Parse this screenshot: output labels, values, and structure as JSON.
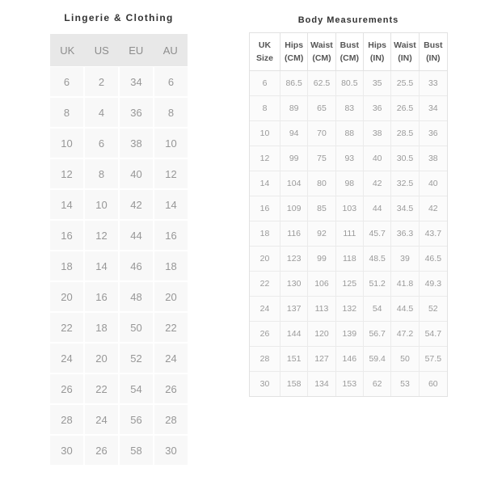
{
  "colors": {
    "page_background": "#ffffff",
    "clothing_header_bg": "#e8e8e8",
    "clothing_cell_bg": "#f8f8f8",
    "measure_border": "#e2e2e2",
    "measure_cell_bg": "#fbfbfb",
    "title_text": "#333333",
    "clothing_header_text": "#8d8d8d",
    "data_text": "#9a9a9a",
    "measure_header_text": "#565656"
  },
  "clothing_table": {
    "title": "Lingerie & Clothing",
    "headers": [
      "UK",
      "US",
      "EU",
      "AU"
    ],
    "rows": [
      [
        "6",
        "2",
        "34",
        "6"
      ],
      [
        "8",
        "4",
        "36",
        "8"
      ],
      [
        "10",
        "6",
        "38",
        "10"
      ],
      [
        "12",
        "8",
        "40",
        "12"
      ],
      [
        "14",
        "10",
        "42",
        "14"
      ],
      [
        "16",
        "12",
        "44",
        "16"
      ],
      [
        "18",
        "14",
        "46",
        "18"
      ],
      [
        "20",
        "16",
        "48",
        "20"
      ],
      [
        "22",
        "18",
        "50",
        "22"
      ],
      [
        "24",
        "20",
        "52",
        "24"
      ],
      [
        "26",
        "22",
        "54",
        "26"
      ],
      [
        "28",
        "24",
        "56",
        "28"
      ],
      [
        "30",
        "26",
        "58",
        "30"
      ]
    ]
  },
  "measurements_table": {
    "title": "Body Measurements",
    "headers": [
      [
        "UK",
        "Size"
      ],
      [
        "Hips",
        "(CM)"
      ],
      [
        "Waist",
        "(CM)"
      ],
      [
        "Bust",
        "(CM)"
      ],
      [
        "Hips",
        "(IN)"
      ],
      [
        "Waist",
        "(IN)"
      ],
      [
        "Bust",
        "(IN)"
      ]
    ],
    "rows": [
      [
        "6",
        "86.5",
        "62.5",
        "80.5",
        "35",
        "25.5",
        "33"
      ],
      [
        "8",
        "89",
        "65",
        "83",
        "36",
        "26.5",
        "34"
      ],
      [
        "10",
        "94",
        "70",
        "88",
        "38",
        "28.5",
        "36"
      ],
      [
        "12",
        "99",
        "75",
        "93",
        "40",
        "30.5",
        "38"
      ],
      [
        "14",
        "104",
        "80",
        "98",
        "42",
        "32.5",
        "40"
      ],
      [
        "16",
        "109",
        "85",
        "103",
        "44",
        "34.5",
        "42"
      ],
      [
        "18",
        "116",
        "92",
        "111",
        "45.7",
        "36.3",
        "43.7"
      ],
      [
        "20",
        "123",
        "99",
        "118",
        "48.5",
        "39",
        "46.5"
      ],
      [
        "22",
        "130",
        "106",
        "125",
        "51.2",
        "41.8",
        "49.3"
      ],
      [
        "24",
        "137",
        "113",
        "132",
        "54",
        "44.5",
        "52"
      ],
      [
        "26",
        "144",
        "120",
        "139",
        "56.7",
        "47.2",
        "54.7"
      ],
      [
        "28",
        "151",
        "127",
        "146",
        "59.4",
        "50",
        "57.5"
      ],
      [
        "30",
        "158",
        "134",
        "153",
        "62",
        "53",
        "60"
      ]
    ]
  }
}
